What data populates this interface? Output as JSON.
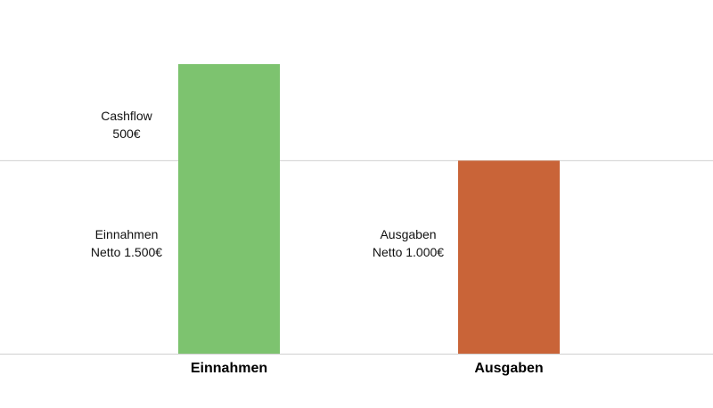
{
  "chart_data": {
    "type": "bar",
    "categories": [
      "Einnahmen",
      "Ausgaben"
    ],
    "values": [
      1500,
      1000
    ],
    "ylim": [
      0,
      1500
    ],
    "grid": false,
    "colors": [
      "#7dc36f",
      "#c96438"
    ],
    "reference_line": {
      "value": 1000
    },
    "annotations": {
      "cashflow": {
        "line1": "Cashflow",
        "line2": "500€"
      },
      "einnahmen": {
        "line1": "Einnahmen",
        "line2": "Netto 1.500€"
      },
      "ausgaben": {
        "line1": "Ausgaben",
        "line2": "Netto 1.000€"
      }
    }
  }
}
